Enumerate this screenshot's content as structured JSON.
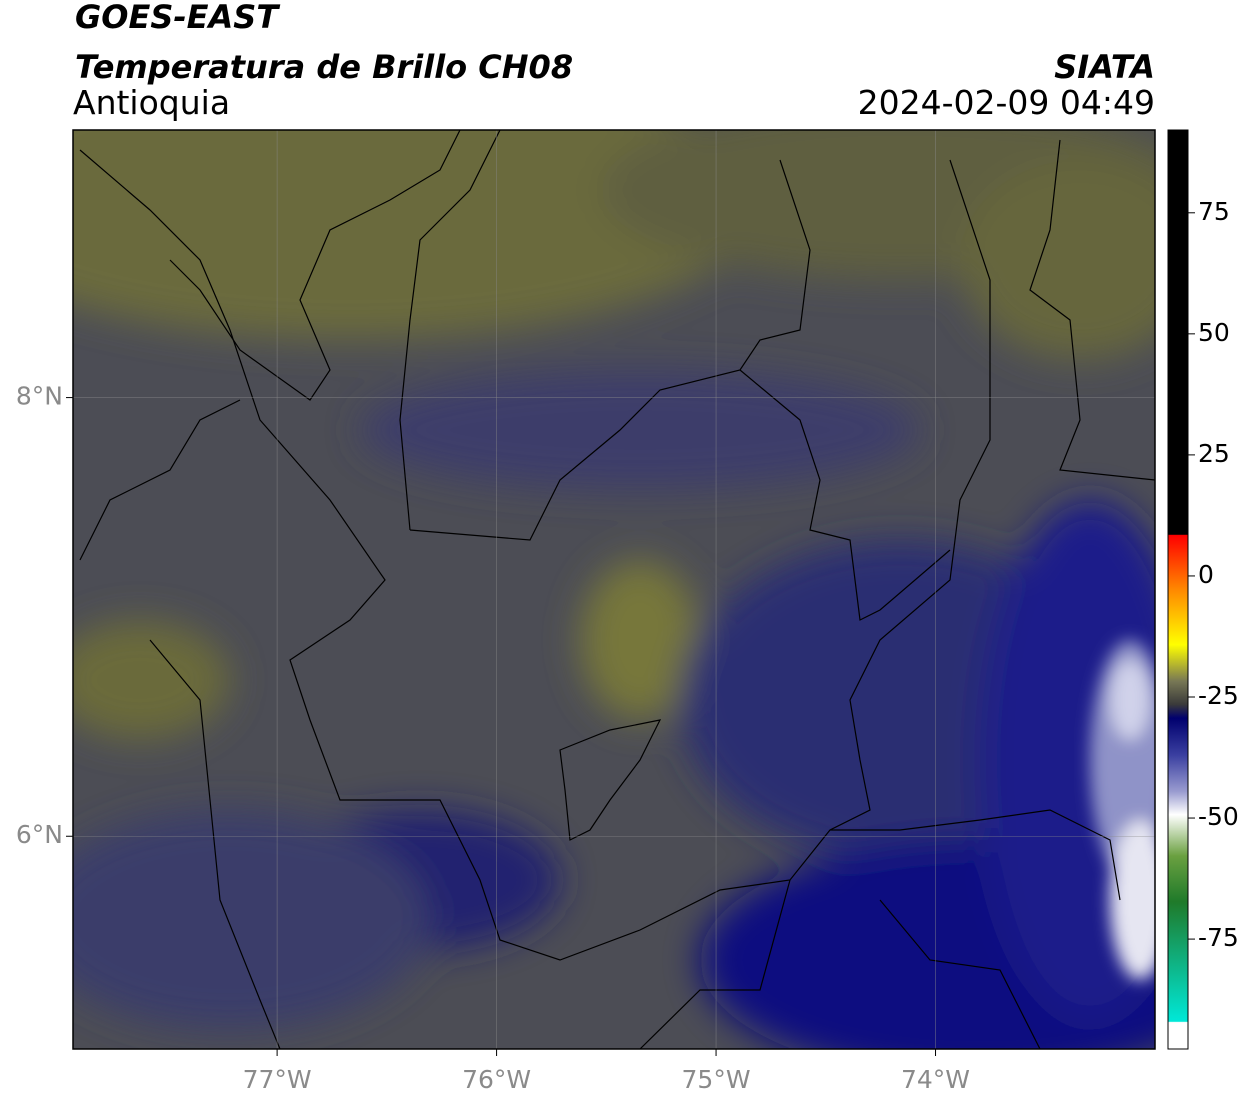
{
  "header": {
    "satellite": "GOES-EAST",
    "product": "Temperatura de Brillo CH08",
    "region": "Antioquia",
    "source": "SIATA",
    "datetime": "2024-02-09 04:49"
  },
  "map": {
    "xlim": [
      -77.93,
      -73.0
    ],
    "ylim": [
      5.03,
      9.22
    ],
    "xticks": [
      {
        "value": -77,
        "label": "77°W"
      },
      {
        "value": -76,
        "label": "76°W"
      },
      {
        "value": -75,
        "label": "75°W"
      },
      {
        "value": -74,
        "label": "74°W"
      }
    ],
    "yticks": [
      {
        "value": 8,
        "label": "8°N"
      },
      {
        "value": 6,
        "label": "6°N"
      }
    ]
  },
  "colorbar": {
    "lim": [
      -97.7,
      92.1
    ],
    "ticks": [
      75,
      50,
      25,
      0,
      -25,
      -50,
      -75
    ]
  }
}
